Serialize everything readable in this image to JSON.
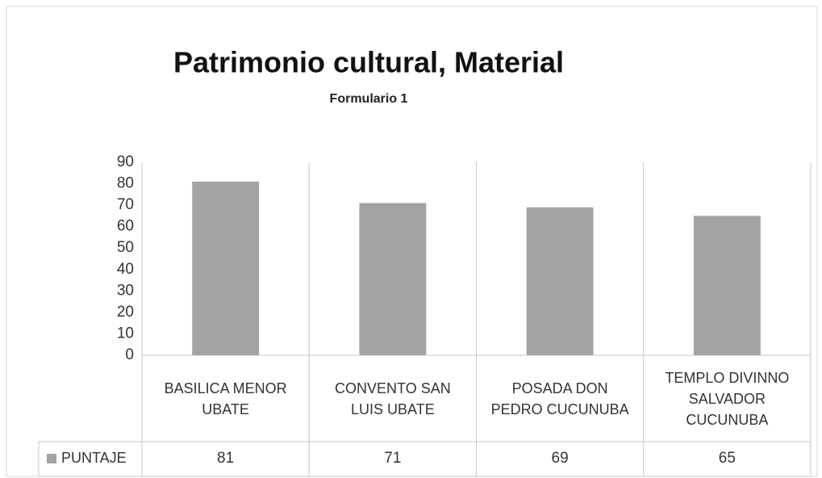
{
  "chart_data": {
    "type": "bar",
    "title": "Patrimonio cultural, Material",
    "subtitle": "Formulario 1",
    "categories": [
      "BASILICA MENOR\nUBATE",
      "CONVENTO SAN\nLUIS UBATE",
      "POSADA DON\nPEDRO CUCUNUBA",
      "TEMPLO DIVINNO\nSALVADOR\nCUCUNUBA"
    ],
    "series": [
      {
        "name": "PUNTAJE",
        "color": "#a3a3a3",
        "values": [
          81,
          71,
          69,
          65
        ]
      }
    ],
    "ylim": [
      0,
      90
    ],
    "yticks": [
      0,
      10,
      20,
      30,
      40,
      50,
      60,
      70,
      80,
      90
    ],
    "grid": false,
    "data_table": true
  }
}
